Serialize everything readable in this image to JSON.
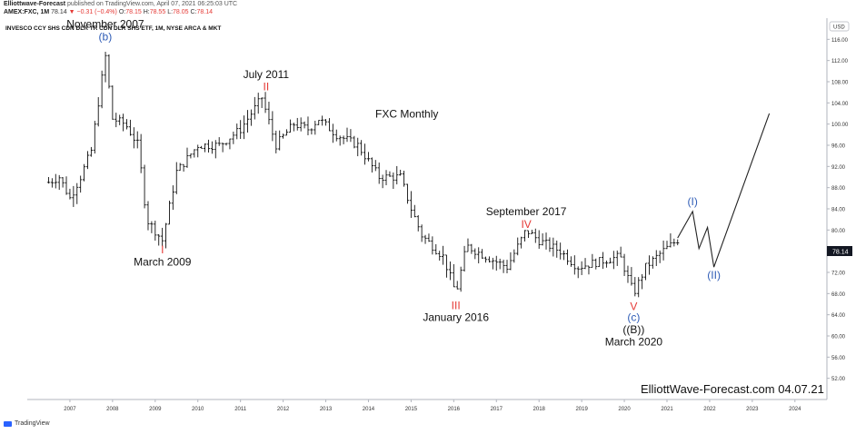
{
  "header": {
    "brand": "Elliottwave-Forecast",
    "published": "published on TradingView.com, April 07, 2021 06:25:03 UTC",
    "symbol": "AMEX:FXC, 1M",
    "last": "78.14",
    "change": "−0.31 (−0.4%)",
    "ohlc": {
      "O": "78.15",
      "H": "78.55",
      "L": "78.05",
      "C": "78.14"
    }
  },
  "footer": {
    "brand": "TradingView",
    "watermark": "ElliottWave-Forecast.com 04.07.21"
  },
  "colors": {
    "red": "#e53935",
    "blue": "#2f5cb6",
    "black": "#111111",
    "bars": "#111111",
    "price_tag": "#131722"
  },
  "chart_data": {
    "type": "ohlc",
    "title": "INVESCO CCY SHS CDN DLR TR CDN DLR SHS ETF, 1M, NYSE ARCA & MKT",
    "subtitle": "FXC Monthly",
    "currency": "USD",
    "last_price": "78.14",
    "ylim": [
      48,
      120
    ],
    "xlim": [
      2006.0,
      2024.75
    ],
    "y_ticks": [
      "116.00",
      "112.00",
      "108.00",
      "104.00",
      "100.00",
      "96.00",
      "92.00",
      "88.00",
      "84.00",
      "80.00",
      "76.00",
      "72.00",
      "68.00",
      "64.00",
      "60.00",
      "56.00",
      "52.00"
    ],
    "x_ticks": [
      "2007",
      "2008",
      "2009",
      "2010",
      "2011",
      "2012",
      "2013",
      "2014",
      "2015",
      "2016",
      "2017",
      "2018",
      "2019",
      "2020",
      "2021",
      "2022",
      "2023",
      "2024"
    ],
    "monthly_closes": [
      {
        "x": 2006.5,
        "y": 89
      },
      {
        "x": 2006.75,
        "y": 90
      },
      {
        "x": 2007.0,
        "y": 86
      },
      {
        "x": 2007.25,
        "y": 90
      },
      {
        "x": 2007.5,
        "y": 95
      },
      {
        "x": 2007.83,
        "y": 113
      },
      {
        "x": 2008.0,
        "y": 101
      },
      {
        "x": 2008.3,
        "y": 100
      },
      {
        "x": 2008.6,
        "y": 96
      },
      {
        "x": 2008.8,
        "y": 82
      },
      {
        "x": 2009.17,
        "y": 78
      },
      {
        "x": 2009.5,
        "y": 91
      },
      {
        "x": 2010.0,
        "y": 96
      },
      {
        "x": 2010.5,
        "y": 96
      },
      {
        "x": 2011.0,
        "y": 99
      },
      {
        "x": 2011.5,
        "y": 105
      },
      {
        "x": 2011.83,
        "y": 96
      },
      {
        "x": 2012.25,
        "y": 100
      },
      {
        "x": 2012.6,
        "y": 99
      },
      {
        "x": 2012.83,
        "y": 101
      },
      {
        "x": 2013.25,
        "y": 98
      },
      {
        "x": 2013.75,
        "y": 96
      },
      {
        "x": 2014.25,
        "y": 90
      },
      {
        "x": 2014.75,
        "y": 90
      },
      {
        "x": 2015.0,
        "y": 84
      },
      {
        "x": 2015.25,
        "y": 79
      },
      {
        "x": 2015.75,
        "y": 75
      },
      {
        "x": 2016.05,
        "y": 68
      },
      {
        "x": 2016.3,
        "y": 77
      },
      {
        "x": 2016.75,
        "y": 75
      },
      {
        "x": 2017.25,
        "y": 73
      },
      {
        "x": 2017.7,
        "y": 80
      },
      {
        "x": 2018.0,
        "y": 78
      },
      {
        "x": 2018.5,
        "y": 76
      },
      {
        "x": 2018.9,
        "y": 73
      },
      {
        "x": 2019.4,
        "y": 74
      },
      {
        "x": 2019.9,
        "y": 75
      },
      {
        "x": 2020.22,
        "y": 68
      },
      {
        "x": 2020.5,
        "y": 73
      },
      {
        "x": 2020.9,
        "y": 76
      },
      {
        "x": 2021.25,
        "y": 78.14
      }
    ],
    "projection": [
      {
        "x": 2021.25,
        "y": 78.5
      },
      {
        "x": 2021.6,
        "y": 83.5
      },
      {
        "x": 2021.75,
        "y": 76.5
      },
      {
        "x": 2021.95,
        "y": 80.5
      },
      {
        "x": 2022.1,
        "y": 73
      },
      {
        "x": 2023.4,
        "y": 102
      }
    ],
    "annotations": [
      {
        "text": "November 2007",
        "x": 2007.83,
        "y": 118.2,
        "color": "black",
        "size": 12
      },
      {
        "text": "(b)",
        "x": 2007.83,
        "y": 115.8,
        "color": "blue",
        "size": 12
      },
      {
        "text": "July 2011",
        "x": 2011.6,
        "y": 108.7,
        "color": "black",
        "size": 12
      },
      {
        "text": "II",
        "x": 2011.6,
        "y": 106.4,
        "color": "red",
        "size": 12
      },
      {
        "text": "I",
        "x": 2009.17,
        "y": 75.6,
        "color": "red",
        "size": 12
      },
      {
        "text": "March 2009",
        "x": 2009.17,
        "y": 73.3,
        "color": "black",
        "size": 12
      },
      {
        "text": "FXC Monthly",
        "x": 2014.9,
        "y": 101.2,
        "color": "black",
        "size": 12
      },
      {
        "text": "September 2017",
        "x": 2017.7,
        "y": 82.8,
        "color": "black",
        "size": 12
      },
      {
        "text": "IV",
        "x": 2017.7,
        "y": 80.4,
        "color": "red",
        "size": 12
      },
      {
        "text": "III",
        "x": 2016.05,
        "y": 65.1,
        "color": "red",
        "size": 12
      },
      {
        "text": "January 2016",
        "x": 2016.05,
        "y": 62.8,
        "color": "black",
        "size": 12
      },
      {
        "text": "V",
        "x": 2020.22,
        "y": 64.9,
        "color": "red",
        "size": 12
      },
      {
        "text": "(c)",
        "x": 2020.22,
        "y": 62.8,
        "color": "blue",
        "size": 12
      },
      {
        "text": "((B))",
        "x": 2020.22,
        "y": 60.5,
        "color": "black",
        "size": 12
      },
      {
        "text": "March 2020",
        "x": 2020.22,
        "y": 58.2,
        "color": "black",
        "size": 12
      },
      {
        "text": "(I)",
        "x": 2021.6,
        "y": 84.7,
        "color": "blue",
        "size": 12
      },
      {
        "text": "(II)",
        "x": 2022.1,
        "y": 70.8,
        "color": "blue",
        "size": 12
      }
    ]
  }
}
